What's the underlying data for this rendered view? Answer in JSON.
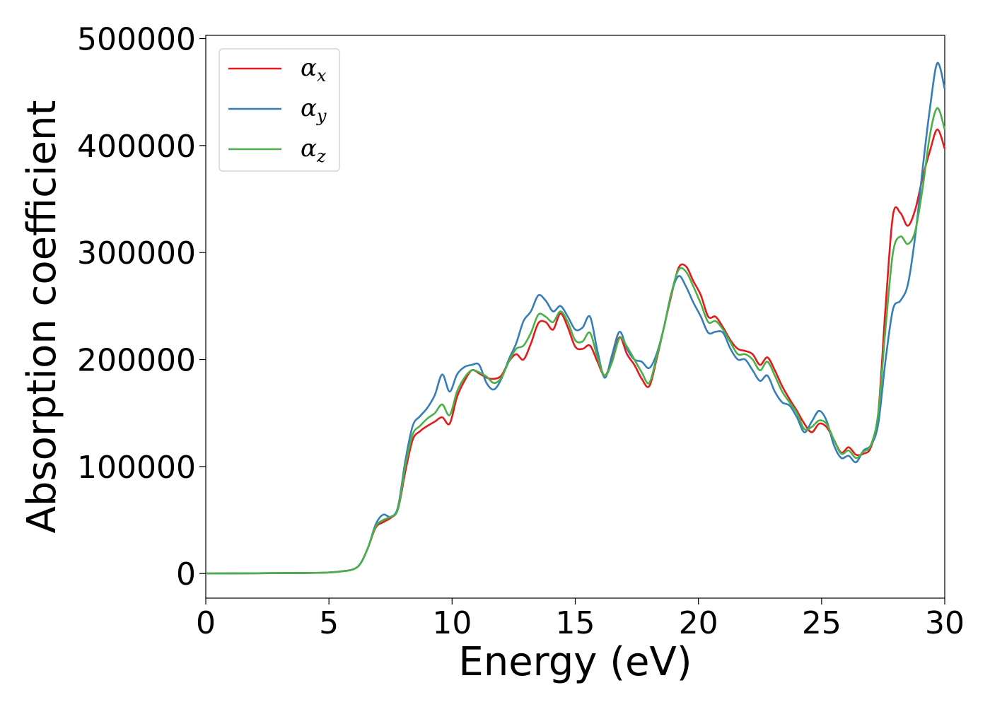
{
  "chart_data": {
    "type": "line",
    "title": "",
    "xlabel": "Energy (eV)",
    "ylabel": "Absorption coefficient",
    "xlim": [
      0,
      30
    ],
    "ylim": [
      -23000,
      503000
    ],
    "xticks": [
      "0",
      "5",
      "10",
      "15",
      "20",
      "25",
      "30"
    ],
    "yticks": [
      "0",
      "100000",
      "200000",
      "300000",
      "400000",
      "500000"
    ],
    "legend_position": "top-left",
    "grid": false,
    "series": [
      {
        "name": "α",
        "name_sub": "x",
        "color": "#e41a1c",
        "x": [
          0,
          4,
          5,
          5.5,
          6,
          6.3,
          6.6,
          6.9,
          7.2,
          7.5,
          7.8,
          8.1,
          8.4,
          8.7,
          9.0,
          9.3,
          9.6,
          9.9,
          10.2,
          10.5,
          10.8,
          11.1,
          11.4,
          11.7,
          12.0,
          12.3,
          12.6,
          12.9,
          13.2,
          13.5,
          13.8,
          14.1,
          14.4,
          14.7,
          15.0,
          15.3,
          15.6,
          15.9,
          16.2,
          16.5,
          16.8,
          17.1,
          17.4,
          17.7,
          18.0,
          18.3,
          18.6,
          18.9,
          19.2,
          19.5,
          19.8,
          20.1,
          20.4,
          20.7,
          21.0,
          21.3,
          21.6,
          21.9,
          22.2,
          22.5,
          22.8,
          23.1,
          23.4,
          23.7,
          24.0,
          24.3,
          24.6,
          24.9,
          25.2,
          25.5,
          25.8,
          26.1,
          26.4,
          26.7,
          27.0,
          27.3,
          27.6,
          27.9,
          28.2,
          28.5,
          28.8,
          29.1,
          29.4,
          29.7,
          30.0
        ],
        "values": [
          0,
          500,
          1000,
          2000,
          4000,
          10000,
          25000,
          43000,
          48000,
          52000,
          60000,
          95000,
          125000,
          133000,
          138000,
          142000,
          146000,
          140000,
          165000,
          180000,
          190000,
          187000,
          183000,
          182000,
          185000,
          198000,
          205000,
          200000,
          215000,
          234000,
          235000,
          228000,
          243000,
          230000,
          212000,
          210000,
          213000,
          198000,
          185000,
          200000,
          221000,
          205000,
          195000,
          182000,
          175000,
          200000,
          230000,
          260000,
          286000,
          287000,
          273000,
          260000,
          240000,
          240000,
          230000,
          218000,
          210000,
          208000,
          205000,
          195000,
          202000,
          190000,
          175000,
          163000,
          152000,
          140000,
          132000,
          140000,
          137000,
          125000,
          113000,
          118000,
          111000,
          112000,
          118000,
          150000,
          250000,
          335000,
          337000,
          325000,
          340000,
          370000,
          395000,
          415000,
          397000
        ]
      },
      {
        "name": "α",
        "name_sub": "y",
        "color": "#377eb8",
        "x": [
          0,
          4,
          5,
          5.5,
          6,
          6.3,
          6.6,
          6.9,
          7.2,
          7.5,
          7.8,
          8.1,
          8.4,
          8.7,
          9.0,
          9.3,
          9.6,
          9.9,
          10.2,
          10.5,
          10.8,
          11.1,
          11.4,
          11.7,
          12.0,
          12.3,
          12.6,
          12.9,
          13.2,
          13.5,
          13.8,
          14.1,
          14.4,
          14.7,
          15.0,
          15.3,
          15.6,
          15.9,
          16.2,
          16.5,
          16.8,
          17.1,
          17.4,
          17.7,
          18.0,
          18.3,
          18.6,
          18.9,
          19.2,
          19.5,
          19.8,
          20.1,
          20.4,
          20.7,
          21.0,
          21.3,
          21.6,
          21.9,
          22.2,
          22.5,
          22.8,
          23.1,
          23.4,
          23.7,
          24.0,
          24.3,
          24.6,
          24.9,
          25.2,
          25.5,
          25.8,
          26.1,
          26.4,
          26.7,
          27.0,
          27.3,
          27.6,
          27.9,
          28.2,
          28.5,
          28.8,
          29.1,
          29.4,
          29.7,
          30.0
        ],
        "values": [
          0,
          500,
          1000,
          2000,
          4000,
          10000,
          25000,
          46000,
          55000,
          53000,
          62000,
          105000,
          138000,
          147000,
          155000,
          167000,
          186000,
          170000,
          186000,
          193000,
          195000,
          195000,
          178000,
          172000,
          182000,
          200000,
          215000,
          236000,
          245000,
          260000,
          255000,
          245000,
          250000,
          240000,
          228000,
          230000,
          240000,
          208000,
          183000,
          205000,
          226000,
          210000,
          200000,
          198000,
          192000,
          205000,
          230000,
          262000,
          278000,
          268000,
          253000,
          240000,
          225000,
          226000,
          225000,
          210000,
          200000,
          200000,
          190000,
          180000,
          185000,
          170000,
          160000,
          157000,
          146000,
          132000,
          142000,
          152000,
          143000,
          120000,
          108000,
          110000,
          104000,
          115000,
          120000,
          140000,
          200000,
          247000,
          255000,
          270000,
          315000,
          378000,
          435000,
          477000,
          453000
        ]
      },
      {
        "name": "α",
        "name_sub": "z",
        "color": "#4daf4a",
        "x": [
          0,
          4,
          5,
          5.5,
          6,
          6.3,
          6.6,
          6.9,
          7.2,
          7.5,
          7.8,
          8.1,
          8.4,
          8.7,
          9.0,
          9.3,
          9.6,
          9.9,
          10.2,
          10.5,
          10.8,
          11.1,
          11.4,
          11.7,
          12.0,
          12.3,
          12.6,
          12.9,
          13.2,
          13.5,
          13.8,
          14.1,
          14.4,
          14.7,
          15.0,
          15.3,
          15.6,
          15.9,
          16.2,
          16.5,
          16.8,
          17.1,
          17.4,
          17.7,
          18.0,
          18.3,
          18.6,
          18.9,
          19.2,
          19.5,
          19.8,
          20.1,
          20.4,
          20.7,
          21.0,
          21.3,
          21.6,
          21.9,
          22.2,
          22.5,
          22.8,
          23.1,
          23.4,
          23.7,
          24.0,
          24.3,
          24.6,
          24.9,
          25.2,
          25.5,
          25.8,
          26.1,
          26.4,
          26.7,
          27.0,
          27.3,
          27.6,
          27.9,
          28.2,
          28.5,
          28.8,
          29.1,
          29.4,
          29.7,
          30.0
        ],
        "values": [
          0,
          500,
          1000,
          2000,
          4000,
          10000,
          25000,
          44000,
          50000,
          53000,
          60000,
          100000,
          130000,
          138000,
          145000,
          150000,
          158000,
          148000,
          170000,
          183000,
          190000,
          188000,
          184000,
          178000,
          183000,
          198000,
          210000,
          213000,
          225000,
          242000,
          240000,
          235000,
          245000,
          235000,
          218000,
          217000,
          225000,
          202000,
          185000,
          198000,
          220000,
          212000,
          200000,
          188000,
          178000,
          202000,
          230000,
          262000,
          284000,
          282000,
          268000,
          252000,
          235000,
          236000,
          228000,
          216000,
          205000,
          205000,
          200000,
          190000,
          198000,
          185000,
          170000,
          160000,
          150000,
          135000,
          137000,
          143000,
          140000,
          125000,
          112000,
          115000,
          108000,
          114000,
          120000,
          150000,
          230000,
          300000,
          315000,
          308000,
          320000,
          360000,
          410000,
          435000,
          415000
        ]
      }
    ]
  }
}
